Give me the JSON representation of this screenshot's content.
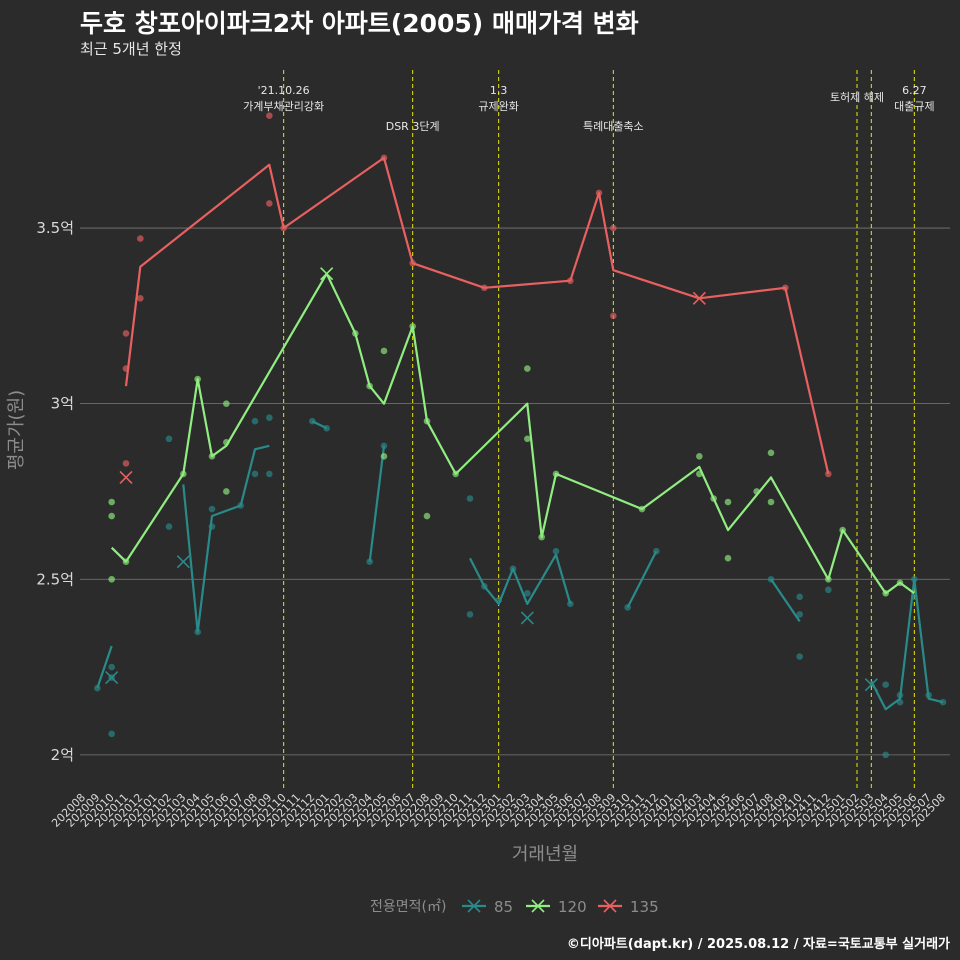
{
  "title": "두호 창포아이파크2차 아파트(2005) 매매가격 변화",
  "subtitle": "최근 5개년 한정",
  "caption": "©디아파트(dapt.kr) / 2025.08.12 / 자료=국토교통부 실거래가",
  "colors": {
    "s85": "#2a8a8a",
    "s120": "#90ee80",
    "s135": "#e86060",
    "event": "#e8e800",
    "grid": "#7a7a7a"
  },
  "chart_data": {
    "type": "line",
    "xlabel": "거래년월",
    "ylabel": "평균가(원)",
    "ylim": [
      1.9,
      3.95
    ],
    "yticks": [
      {
        "value": 2.0,
        "label": "2억"
      },
      {
        "value": 2.5,
        "label": "2.5억"
      },
      {
        "value": 3.0,
        "label": "3억"
      },
      {
        "value": 3.5,
        "label": "3.5억"
      }
    ],
    "x_categories": [
      "202008",
      "202009",
      "202010",
      "202011",
      "202012",
      "202101",
      "202102",
      "202103",
      "202104",
      "202105",
      "202106",
      "202107",
      "202108",
      "202109",
      "202110",
      "202111",
      "202112",
      "202201",
      "202202",
      "202203",
      "202204",
      "202205",
      "202206",
      "202207",
      "202208",
      "202209",
      "202210",
      "202211",
      "202212",
      "202301",
      "202302",
      "202303",
      "202304",
      "202305",
      "202306",
      "202307",
      "202308",
      "202309",
      "202310",
      "202311",
      "202312",
      "202401",
      "202402",
      "202403",
      "202404",
      "202405",
      "202406",
      "202407",
      "202408",
      "202409",
      "202410",
      "202411",
      "202412",
      "202501",
      "202502",
      "202503",
      "202504",
      "202505",
      "202506",
      "202507",
      "202508"
    ],
    "events": [
      {
        "x": "202110",
        "text": "'21.10.26\n가계부채관리강화",
        "row": 0
      },
      {
        "x": "202207",
        "text": "DSR 3단계",
        "row": 2
      },
      {
        "x": "202301",
        "text": "1.3\n규제완화",
        "row": 0
      },
      {
        "x": "202309",
        "text": "특례대출축소",
        "row": 2
      },
      {
        "x": "202502",
        "text": "토허제 해제",
        "row": 1
      },
      {
        "x": "202503",
        "text": "",
        "row": 0
      },
      {
        "x": "202506",
        "text": "6.27\n대출규제",
        "row": 3
      }
    ],
    "legend": {
      "title": "전용면적(㎡)",
      "position": "bottom"
    },
    "series": [
      {
        "name": "85",
        "color": "#2a8a8a",
        "line_segments": [
          [
            [
              "202009",
              2.19
            ],
            [
              "202010",
              2.31
            ]
          ],
          [
            [
              "202103",
              2.77
            ],
            [
              "202104",
              2.35
            ],
            [
              "202105",
              2.68
            ],
            [
              "202107",
              2.71
            ],
            [
              "202108",
              2.87
            ],
            [
              "202109",
              2.88
            ]
          ],
          [
            [
              "202112",
              2.95
            ],
            [
              "202201",
              2.93
            ]
          ],
          [
            [
              "202204",
              2.55
            ],
            [
              "202205",
              2.88
            ]
          ],
          [
            [
              "202211",
              2.56
            ],
            [
              "202212",
              2.48
            ],
            [
              "202301",
              2.43
            ],
            [
              "202302",
              2.53
            ],
            [
              "202303",
              2.43
            ],
            [
              "202305",
              2.57
            ],
            [
              "202306",
              2.43
            ]
          ],
          [
            [
              "202310",
              2.42
            ],
            [
              "202312",
              2.58
            ]
          ],
          [
            [
              "202408",
              2.5
            ],
            [
              "202410",
              2.38
            ]
          ],
          [
            [
              "202412",
              2.47
            ]
          ],
          [
            [
              "202503",
              2.21
            ],
            [
              "202504",
              2.13
            ],
            [
              "202505",
              2.16
            ],
            [
              "202506",
              2.5
            ],
            [
              "202507",
              2.16
            ],
            [
              "202508",
              2.15
            ]
          ]
        ],
        "points": [
          [
            "202009",
            2.19
          ],
          [
            "202010",
            2.06
          ],
          [
            "202010",
            2.25
          ],
          [
            "202010",
            2.22
          ],
          [
            "202102",
            2.9
          ],
          [
            "202102",
            2.65
          ],
          [
            "202104",
            2.35
          ],
          [
            "202105",
            2.7
          ],
          [
            "202105",
            2.65
          ],
          [
            "202107",
            2.71
          ],
          [
            "202108",
            2.95
          ],
          [
            "202108",
            2.8
          ],
          [
            "202109",
            2.96
          ],
          [
            "202109",
            2.8
          ],
          [
            "202112",
            2.95
          ],
          [
            "202201",
            2.93
          ],
          [
            "202204",
            2.55
          ],
          [
            "202205",
            2.88
          ],
          [
            "202211",
            2.73
          ],
          [
            "202211",
            2.4
          ],
          [
            "202212",
            2.48
          ],
          [
            "202301",
            2.44
          ],
          [
            "202302",
            2.53
          ],
          [
            "202303",
            2.46
          ],
          [
            "202305",
            2.58
          ],
          [
            "202306",
            2.43
          ],
          [
            "202310",
            2.42
          ],
          [
            "202312",
            2.58
          ],
          [
            "202408",
            2.5
          ],
          [
            "202410",
            2.45
          ],
          [
            "202410",
            2.4
          ],
          [
            "202410",
            2.28
          ],
          [
            "202412",
            2.47
          ],
          [
            "202504",
            2.2
          ],
          [
            "202504",
            2.0
          ],
          [
            "202505",
            2.15
          ],
          [
            "202505",
            2.17
          ],
          [
            "202506",
            2.5
          ],
          [
            "202506",
            2.45
          ],
          [
            "202507",
            2.17
          ],
          [
            "202508",
            2.15
          ]
        ],
        "x_markers": [
          [
            "202010",
            2.22
          ],
          [
            "202103",
            2.55
          ],
          [
            "202303",
            2.39
          ],
          [
            "202503",
            2.2
          ]
        ]
      },
      {
        "name": "120",
        "color": "#90ee80",
        "line_segments": [
          [
            [
              "202010",
              2.59
            ],
            [
              "202011",
              2.55
            ],
            [
              "202103",
              2.8
            ],
            [
              "202104",
              3.07
            ],
            [
              "202105",
              2.85
            ],
            [
              "202106",
              2.88
            ],
            [
              "202201",
              3.37
            ],
            [
              "202203",
              3.2
            ],
            [
              "202204",
              3.05
            ],
            [
              "202205",
              3.0
            ],
            [
              "202207",
              3.22
            ],
            [
              "202208",
              2.95
            ],
            [
              "202210",
              2.8
            ],
            [
              "202303",
              3.0
            ],
            [
              "202304",
              2.62
            ],
            [
              "202305",
              2.8
            ],
            [
              "202311",
              2.7
            ],
            [
              "202403",
              2.82
            ],
            [
              "202405",
              2.64
            ],
            [
              "202408",
              2.79
            ],
            [
              "202412",
              2.5
            ],
            [
              "202501",
              2.64
            ],
            [
              "202504",
              2.46
            ],
            [
              "202505",
              2.49
            ],
            [
              "202506",
              2.46
            ]
          ]
        ],
        "points": [
          [
            "202010",
            2.72
          ],
          [
            "202010",
            2.68
          ],
          [
            "202010",
            2.5
          ],
          [
            "202011",
            2.55
          ],
          [
            "202103",
            2.8
          ],
          [
            "202104",
            3.07
          ],
          [
            "202105",
            2.85
          ],
          [
            "202106",
            2.89
          ],
          [
            "202106",
            2.75
          ],
          [
            "202106",
            3.0
          ],
          [
            "202203",
            3.2
          ],
          [
            "202204",
            3.05
          ],
          [
            "202205",
            3.15
          ],
          [
            "202205",
            2.85
          ],
          [
            "202207",
            3.22
          ],
          [
            "202208",
            2.95
          ],
          [
            "202208",
            2.68
          ],
          [
            "202210",
            2.8
          ],
          [
            "202303",
            3.1
          ],
          [
            "202303",
            2.9
          ],
          [
            "202304",
            2.62
          ],
          [
            "202305",
            2.8
          ],
          [
            "202311",
            2.7
          ],
          [
            "202403",
            2.85
          ],
          [
            "202403",
            2.8
          ],
          [
            "202404",
            2.73
          ],
          [
            "202405",
            2.72
          ],
          [
            "202405",
            2.56
          ],
          [
            "202407",
            2.75
          ],
          [
            "202408",
            2.86
          ],
          [
            "202408",
            2.72
          ],
          [
            "202412",
            2.5
          ],
          [
            "202501",
            2.64
          ],
          [
            "202504",
            2.46
          ],
          [
            "202505",
            2.49
          ]
        ],
        "x_markers": [
          [
            "202201",
            3.37
          ]
        ]
      },
      {
        "name": "135",
        "color": "#e86060",
        "line_segments": [
          [
            [
              "202011",
              3.05
            ],
            [
              "202012",
              3.39
            ],
            [
              "202109",
              3.68
            ],
            [
              "202110",
              3.5
            ],
            [
              "202205",
              3.7
            ],
            [
              "202207",
              3.4
            ],
            [
              "202212",
              3.33
            ],
            [
              "202306",
              3.35
            ],
            [
              "202308",
              3.6
            ],
            [
              "202309",
              3.38
            ],
            [
              "202403",
              3.3
            ],
            [
              "202409",
              3.33
            ],
            [
              "202412",
              2.8
            ]
          ]
        ],
        "points": [
          [
            "202011",
            3.2
          ],
          [
            "202011",
            3.1
          ],
          [
            "202011",
            2.83
          ],
          [
            "202012",
            3.47
          ],
          [
            "202012",
            3.3
          ],
          [
            "202109",
            3.82
          ],
          [
            "202109",
            3.57
          ],
          [
            "202110",
            3.5
          ],
          [
            "202205",
            3.7
          ],
          [
            "202207",
            3.4
          ],
          [
            "202212",
            3.33
          ],
          [
            "202306",
            3.35
          ],
          [
            "202308",
            3.6
          ],
          [
            "202309",
            3.5
          ],
          [
            "202309",
            3.25
          ],
          [
            "202409",
            3.33
          ],
          [
            "202412",
            2.8
          ]
        ],
        "x_markers": [
          [
            "202011",
            2.79
          ],
          [
            "202403",
            3.3
          ]
        ]
      }
    ]
  }
}
